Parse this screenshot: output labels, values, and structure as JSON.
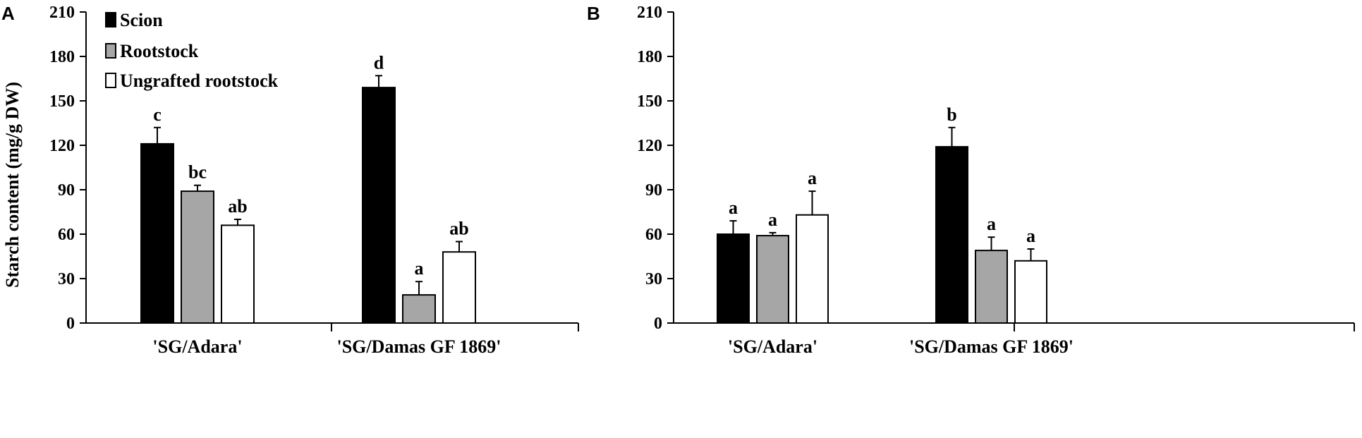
{
  "colors": {
    "scion": "#000000",
    "rootstock": "#a6a6a6",
    "ungrafted": "#ffffff"
  },
  "legend": {
    "items": [
      {
        "label": "Scion",
        "color_key": "scion"
      },
      {
        "label": "Rootstock",
        "color_key": "rootstock"
      },
      {
        "label": "Ungrafted rootstock",
        "color_key": "ungrafted"
      }
    ]
  },
  "chart_data": [
    {
      "type": "bar",
      "panel": "A",
      "ylabel": "Starch content (mg/g DW)",
      "ylim": [
        0,
        210
      ],
      "yticks": [
        0,
        30,
        60,
        90,
        120,
        150,
        180,
        210
      ],
      "categories": [
        "'SG/Adara'",
        "'SG/Damas GF 1869'"
      ],
      "series": [
        {
          "name": "Scion",
          "values": [
            121,
            159
          ],
          "errors": [
            11,
            8
          ],
          "letters": [
            "c",
            "d"
          ]
        },
        {
          "name": "Rootstock",
          "values": [
            89,
            19
          ],
          "errors": [
            4,
            9
          ],
          "letters": [
            "bc",
            "a"
          ]
        },
        {
          "name": "Ungrafted rootstock",
          "values": [
            66,
            48
          ],
          "errors": [
            4,
            7
          ],
          "letters": [
            "ab",
            "ab"
          ]
        }
      ]
    },
    {
      "type": "bar",
      "panel": "B",
      "ylabel": "",
      "ylim": [
        0,
        210
      ],
      "yticks": [
        0,
        30,
        60,
        90,
        120,
        150,
        180,
        210
      ],
      "categories": [
        "'SG/Adara'",
        "'SG/Damas GF 1869'"
      ],
      "series": [
        {
          "name": "Scion",
          "values": [
            60,
            119
          ],
          "errors": [
            9,
            13
          ],
          "letters": [
            "a",
            "b"
          ]
        },
        {
          "name": "Rootstock",
          "values": [
            59,
            49
          ],
          "errors": [
            2,
            9
          ],
          "letters": [
            "a",
            "a"
          ]
        },
        {
          "name": "Ungrafted rootstock",
          "values": [
            73,
            42
          ],
          "errors": [
            16,
            8
          ],
          "letters": [
            "a",
            "a"
          ]
        }
      ]
    }
  ]
}
